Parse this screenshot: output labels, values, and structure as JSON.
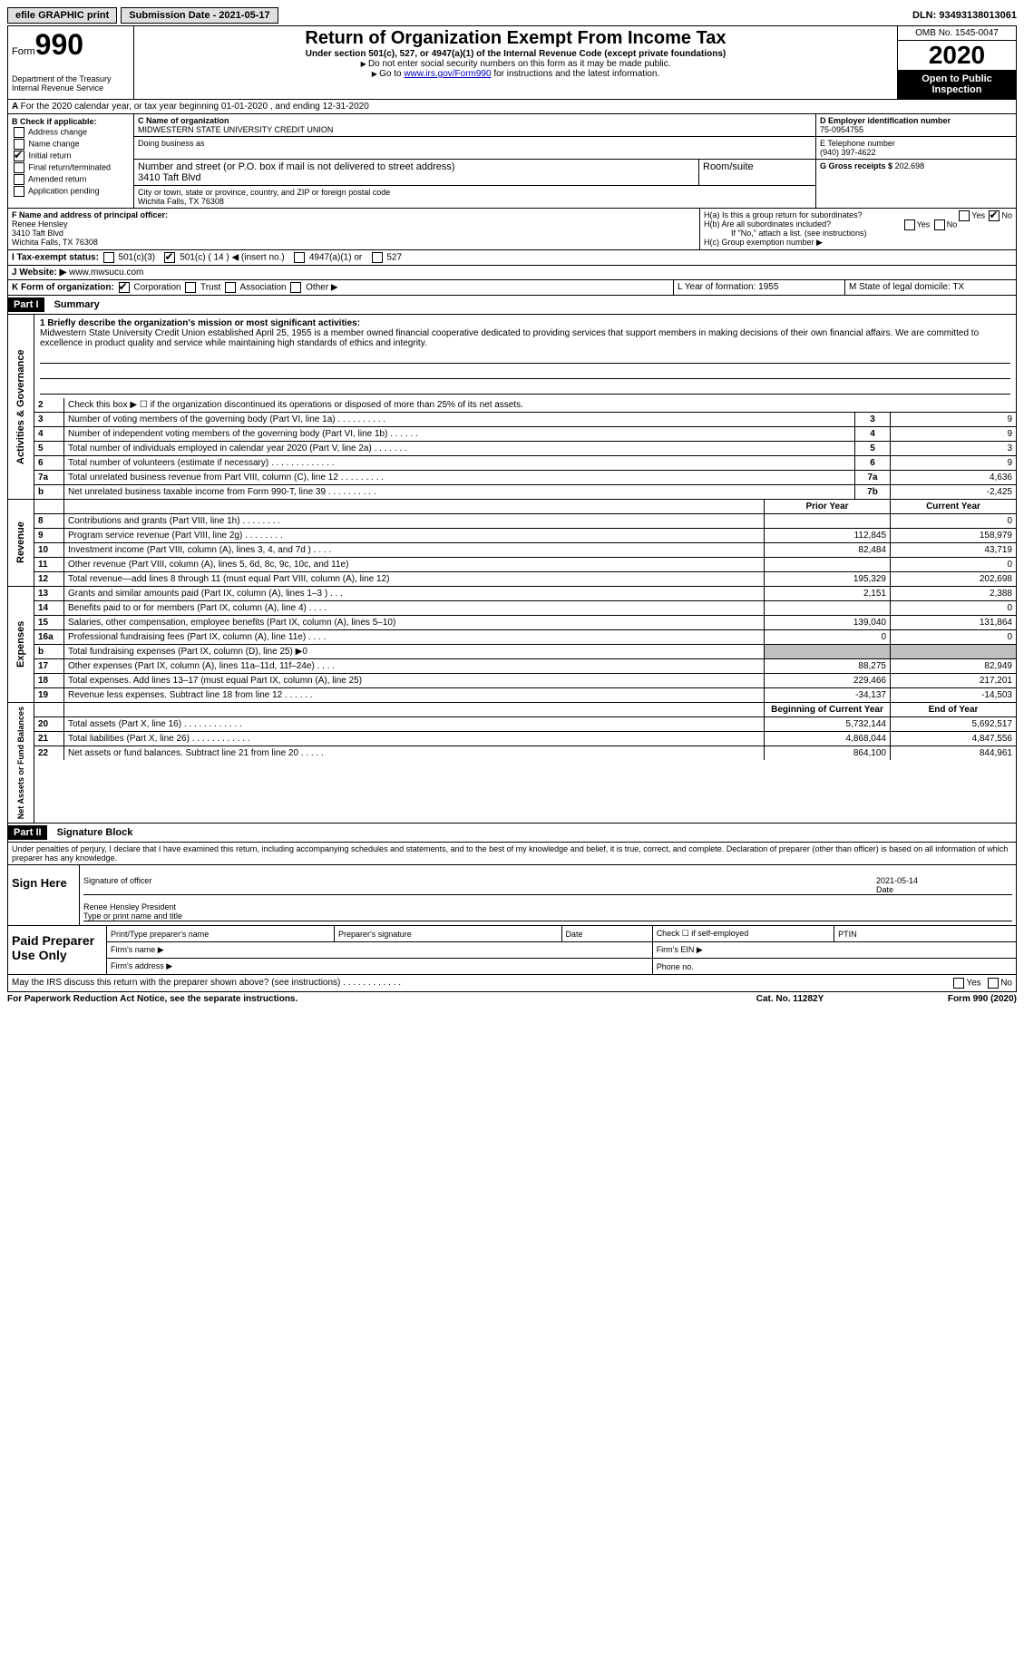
{
  "top": {
    "efile": "efile GRAPHIC print",
    "submission": "Submission Date - 2021-05-17",
    "dln": "DLN: 93493138013061"
  },
  "header": {
    "form_word": "Form",
    "form_num": "990",
    "dept": "Department of the Treasury\nInternal Revenue Service",
    "title": "Return of Organization Exempt From Income Tax",
    "sub": "Under section 501(c), 527, or 4947(a)(1) of the Internal Revenue Code (except private foundations)",
    "note1": "Do not enter social security numbers on this form as it may be made public.",
    "note2_pre": "Go to ",
    "note2_link": "www.irs.gov/Form990",
    "note2_post": " for instructions and the latest information.",
    "omb": "OMB No. 1545-0047",
    "year": "2020",
    "inspect": "Open to Public Inspection"
  },
  "rowA": "For the 2020 calendar year, or tax year beginning 01-01-2020    , and ending 12-31-2020",
  "colB": {
    "label": "B Check if applicable:",
    "addr": "Address change",
    "name": "Name change",
    "initial": "Initial return",
    "final": "Final return/terminated",
    "amended": "Amended return",
    "app": "Application pending"
  },
  "colC": {
    "name_label": "C Name of organization",
    "name": "MIDWESTERN STATE UNIVERSITY CREDIT UNION",
    "dba": "Doing business as",
    "street_label": "Number and street (or P.O. box if mail is not delivered to street address)",
    "street": "3410 Taft Blvd",
    "room_label": "Room/suite",
    "city_label": "City or town, state or province, country, and ZIP or foreign postal code",
    "city": "Wichita Falls, TX  76308"
  },
  "colD": {
    "ein_label": "D Employer identification number",
    "ein": "75-0954755",
    "phone_label": "E Telephone number",
    "phone": "(940) 397-4622",
    "gross_label": "G Gross receipts $",
    "gross": "202,698"
  },
  "rowF": {
    "label": "F Name and address of principal officer:",
    "name": "Renee Hensley",
    "street": "3410 Taft Blvd",
    "city": "Wichita Falls, TX  76308"
  },
  "rowH": {
    "ha": "H(a)  Is this a group return for subordinates?",
    "hb": "H(b)  Are all subordinates included?",
    "hb_note": "If \"No,\" attach a list. (see instructions)",
    "hc": "H(c)  Group exemption number ▶",
    "yes": "Yes",
    "no": "No"
  },
  "rowI": {
    "label": "I  Tax-exempt status:",
    "o1": "501(c)(3)",
    "o2": "501(c) ( 14 ) ◀ (insert no.)",
    "o3": "4947(a)(1) or",
    "o4": "527"
  },
  "rowJ": {
    "label": "J  Website: ▶",
    "value": "www.mwsucu.com"
  },
  "rowK": {
    "label": "K Form of organization:",
    "corp": "Corporation",
    "trust": "Trust",
    "assoc": "Association",
    "other": "Other ▶"
  },
  "rowL": "L Year of formation: 1955",
  "rowM": "M State of legal domicile: TX",
  "part1": {
    "header": "Part I",
    "title": "Summary"
  },
  "mission": {
    "label": "1  Briefly describe the organization's mission or most significant activities:",
    "text": "Midwestern State University Credit Union established April 25, 1955 is a member owned financial cooperative dedicated to providing services that support members in making decisions of their own financial affairs. We are committed to excellence in product quality and service while maintaining high standards of ethics and integrity."
  },
  "gov_lines": [
    {
      "n": "2",
      "d": "Check this box ▶ ☐  if the organization discontinued its operations or disposed of more than 25% of its net assets.",
      "r": "",
      "v": ""
    },
    {
      "n": "3",
      "d": "Number of voting members of the governing body (Part VI, line 1a)   .    .    .    .    .    .    .    .    .    .",
      "r": "3",
      "v": "9"
    },
    {
      "n": "4",
      "d": "Number of independent voting members of the governing body (Part VI, line 1b)   .    .    .    .    .    .",
      "r": "4",
      "v": "9"
    },
    {
      "n": "5",
      "d": "Total number of individuals employed in calendar year 2020 (Part V, line 2a)   .    .    .    .    .    .    .",
      "r": "5",
      "v": "3"
    },
    {
      "n": "6",
      "d": "Total number of volunteers (estimate if necessary)   .    .    .    .    .    .    .    .    .    .    .    .    .",
      "r": "6",
      "v": "9"
    },
    {
      "n": "7a",
      "d": "Total unrelated business revenue from Part VIII, column (C), line 12   .    .    .    .    .    .    .    .    .",
      "r": "7a",
      "v": "4,636"
    },
    {
      "n": "b",
      "d": "Net unrelated business taxable income from Form 990-T, line 39    .    .    .    .    .    .    .    .    .    .",
      "r": "7b",
      "v": "-2,425"
    }
  ],
  "rev_header": {
    "prior": "Prior Year",
    "current": "Current Year"
  },
  "rev_lines": [
    {
      "n": "8",
      "d": "Contributions and grants (Part VIII, line 1h)   .    .    .    .    .    .    .    .",
      "p": "",
      "c": "0"
    },
    {
      "n": "9",
      "d": "Program service revenue (Part VIII, line 2g)   .    .    .    .    .    .    .    .",
      "p": "112,845",
      "c": "158,979"
    },
    {
      "n": "10",
      "d": "Investment income (Part VIII, column (A), lines 3, 4, and 7d )   .    .    .    .",
      "p": "82,484",
      "c": "43,719"
    },
    {
      "n": "11",
      "d": "Other revenue (Part VIII, column (A), lines 5, 6d, 8c, 9c, 10c, and 11e)",
      "p": "",
      "c": "0"
    },
    {
      "n": "12",
      "d": "Total revenue—add lines 8 through 11 (must equal Part VIII, column (A), line 12)",
      "p": "195,329",
      "c": "202,698"
    }
  ],
  "exp_lines": [
    {
      "n": "13",
      "d": "Grants and similar amounts paid (Part IX, column (A), lines 1–3 )   .    .    .",
      "p": "2,151",
      "c": "2,388"
    },
    {
      "n": "14",
      "d": "Benefits paid to or for members (Part IX, column (A), line 4)   .    .    .    .",
      "p": "",
      "c": "0"
    },
    {
      "n": "15",
      "d": "Salaries, other compensation, employee benefits (Part IX, column (A), lines 5–10)",
      "p": "139,040",
      "c": "131,864"
    },
    {
      "n": "16a",
      "d": "Professional fundraising fees (Part IX, column (A), line 11e)   .    .    .    .",
      "p": "0",
      "c": "0"
    },
    {
      "n": "b",
      "d": "Total fundraising expenses (Part IX, column (D), line 25) ▶0",
      "p": "SHADE",
      "c": "SHADE"
    },
    {
      "n": "17",
      "d": "Other expenses (Part IX, column (A), lines 11a–11d, 11f–24e)   .    .    .    .",
      "p": "88,275",
      "c": "82,949"
    },
    {
      "n": "18",
      "d": "Total expenses. Add lines 13–17 (must equal Part IX, column (A), line 25)",
      "p": "229,466",
      "c": "217,201"
    },
    {
      "n": "19",
      "d": "Revenue less expenses. Subtract line 18 from line 12   .    .    .    .    .    .",
      "p": "-34,137",
      "c": "-14,503"
    }
  ],
  "net_header": {
    "begin": "Beginning of Current Year",
    "end": "End of Year"
  },
  "net_lines": [
    {
      "n": "20",
      "d": "Total assets (Part X, line 16)   .    .    .    .    .    .    .    .    .    .    .    .",
      "p": "5,732,144",
      "c": "5,692,517"
    },
    {
      "n": "21",
      "d": "Total liabilities (Part X, line 26)   .    .    .    .    .    .    .    .    .    .    .    .",
      "p": "4,868,044",
      "c": "4,847,556"
    },
    {
      "n": "22",
      "d": "Net assets or fund balances. Subtract line 21 from line 20   .    .    .    .    .",
      "p": "864,100",
      "c": "844,961"
    }
  ],
  "side_labels": {
    "gov": "Activities & Governance",
    "rev": "Revenue",
    "exp": "Expenses",
    "net": "Net Assets or Fund Balances"
  },
  "part2": {
    "header": "Part II",
    "title": "Signature Block",
    "perjury": "Under penalties of perjury, I declare that I have examined this return, including accompanying schedules and statements, and to the best of my knowledge and belief, it is true, correct, and complete. Declaration of preparer (other than officer) is based on all information of which preparer has any knowledge."
  },
  "sign": {
    "here": "Sign Here",
    "sig_label": "Signature of officer",
    "date_label": "Date",
    "date": "2021-05-14",
    "name": "Renee Hensley  President",
    "name_label": "Type or print name and title"
  },
  "prep": {
    "label": "Paid Preparer Use Only",
    "c1": "Print/Type preparer's name",
    "c2": "Preparer's signature",
    "c3": "Date",
    "c4": "Check ☐ if self-employed",
    "c5": "PTIN",
    "firm_name": "Firm's name   ▶",
    "firm_ein": "Firm's EIN ▶",
    "firm_addr": "Firm's address ▶",
    "phone": "Phone no."
  },
  "footer": {
    "discuss": "May the IRS discuss this return with the preparer shown above? (see instructions)    .    .    .    .    .    .    .    .    .    .    .    .",
    "yes": "Yes",
    "no": "No",
    "paperwork": "For Paperwork Reduction Act Notice, see the separate instructions.",
    "cat": "Cat. No. 11282Y",
    "formref": "Form 990 (2020)"
  }
}
